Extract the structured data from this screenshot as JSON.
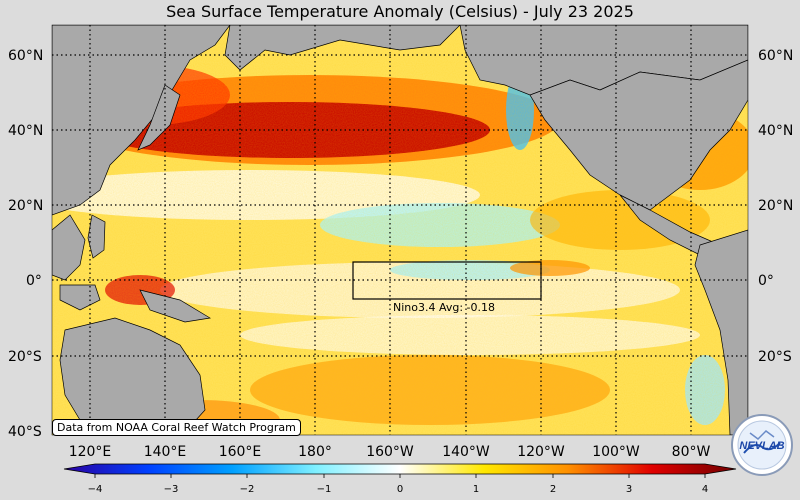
{
  "title": "Sea Surface Temperature Anomaly (Celsius) - July 23 2025",
  "lat_labels": [
    "60°N",
    "40°N",
    "20°N",
    "0°",
    "20°S",
    "40°S"
  ],
  "lon_labels": [
    "120°E",
    "140°E",
    "160°E",
    "180°",
    "160°W",
    "140°W",
    "120°W",
    "100°W",
    "80°W"
  ],
  "nino_box": {
    "label": "Nino3.4 Avg: -0.18"
  },
  "credit": "Data from NOAA Coral Reef Watch Program",
  "colorbar": {
    "ticks": [
      "−4",
      "−3",
      "−2",
      "−1",
      "0",
      "1",
      "2",
      "3",
      "4"
    ],
    "colors": [
      "#2a00a0",
      "#0050ff",
      "#00c8ff",
      "#ffffff",
      "#ffe000",
      "#ff8a00",
      "#e00000",
      "#800000"
    ]
  },
  "logo_text": "NEVLAB"
}
